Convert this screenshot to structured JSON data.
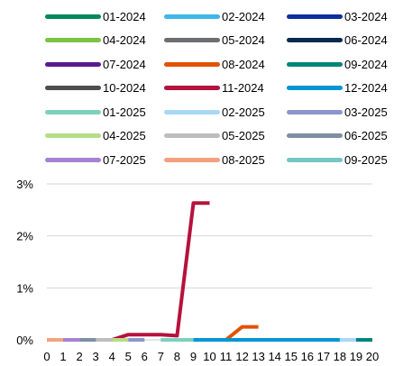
{
  "chart_data": {
    "type": "line",
    "title": "",
    "xlabel": "",
    "ylabel": "",
    "x": [
      0,
      1,
      2,
      3,
      4,
      5,
      6,
      7,
      8,
      9,
      10,
      11,
      12,
      13,
      14,
      15,
      16,
      17,
      18,
      19,
      20
    ],
    "x_tick_labels": [
      "0",
      "1",
      "2",
      "3",
      "4",
      "5",
      "6",
      "7",
      "8",
      "9",
      "10",
      "11",
      "12",
      "13",
      "14",
      "15",
      "16",
      "17",
      "18",
      "19",
      "20"
    ],
    "ylim": [
      0,
      3
    ],
    "y_ticks": [
      0,
      1,
      2,
      3
    ],
    "y_tick_labels": [
      "0%",
      "1%",
      "2%",
      "3%"
    ],
    "grid": "horizontal",
    "legend_position": "top",
    "series": [
      {
        "name": "01-2024",
        "color": "#00875A",
        "x": [],
        "values": []
      },
      {
        "name": "02-2024",
        "color": "#3DB8E8",
        "x": [],
        "values": []
      },
      {
        "name": "03-2024",
        "color": "#0D2F9E",
        "x": [],
        "values": []
      },
      {
        "name": "04-2024",
        "color": "#7DC242",
        "x": [],
        "values": []
      },
      {
        "name": "05-2024",
        "color": "#6D6E71",
        "x": [],
        "values": []
      },
      {
        "name": "06-2024",
        "color": "#082A50",
        "x": [
          17,
          18
        ],
        "values": [
          0,
          0
        ]
      },
      {
        "name": "07-2024",
        "color": "#5A1A8C",
        "x": [
          13,
          14,
          15,
          16
        ],
        "values": [
          0,
          0,
          0,
          0
        ]
      },
      {
        "name": "08-2024",
        "color": "#E35205",
        "x": [
          10,
          11,
          12,
          13
        ],
        "values": [
          0,
          0,
          0.25,
          0.25
        ]
      },
      {
        "name": "09-2024",
        "color": "#008579",
        "x": [
          12,
          13,
          19,
          20
        ],
        "values": [
          0,
          0,
          0,
          0
        ]
      },
      {
        "name": "10-2024",
        "color": "#4D4D4D",
        "x": [
          10,
          11,
          12,
          14,
          15,
          16
        ],
        "values": [
          0,
          0,
          0,
          0,
          0,
          0
        ]
      },
      {
        "name": "11-2024",
        "color": "#B5123C",
        "x": [
          3,
          4,
          5,
          6,
          7,
          8,
          9,
          10
        ],
        "values": [
          0,
          0,
          0.1,
          0.1,
          0.1,
          0.08,
          2.63,
          2.63
        ]
      },
      {
        "name": "12-2024",
        "color": "#0096D6",
        "x": [
          8,
          9,
          10,
          18,
          19
        ],
        "values": [
          0,
          0,
          0,
          0,
          0
        ]
      },
      {
        "name": "01-2025",
        "color": "#7ECFBE",
        "x": [
          7,
          8,
          9
        ],
        "values": [
          0,
          0,
          0
        ]
      },
      {
        "name": "02-2025",
        "color": "#A8D8F5",
        "x": [
          18,
          19
        ],
        "values": [
          0,
          0
        ]
      },
      {
        "name": "03-2025",
        "color": "#8C95CC",
        "x": [
          4,
          5,
          6
        ],
        "values": [
          0,
          0,
          0
        ]
      },
      {
        "name": "04-2025",
        "color": "#B7DC87",
        "x": [
          4,
          5
        ],
        "values": [
          0,
          0
        ]
      },
      {
        "name": "05-2025",
        "color": "#BDBDBD",
        "x": [
          3,
          4
        ],
        "values": [
          0,
          0
        ]
      },
      {
        "name": "06-2025",
        "color": "#7E8FA3",
        "x": [
          2,
          3
        ],
        "values": [
          0,
          0
        ]
      },
      {
        "name": "07-2025",
        "color": "#A682D4",
        "x": [
          1,
          2
        ],
        "values": [
          0,
          0
        ]
      },
      {
        "name": "08-2025",
        "color": "#F2A27E",
        "x": [
          0,
          1
        ],
        "values": [
          0,
          0
        ]
      },
      {
        "name": "09-2025",
        "color": "#72C8BE",
        "x": [],
        "values": []
      }
    ]
  }
}
